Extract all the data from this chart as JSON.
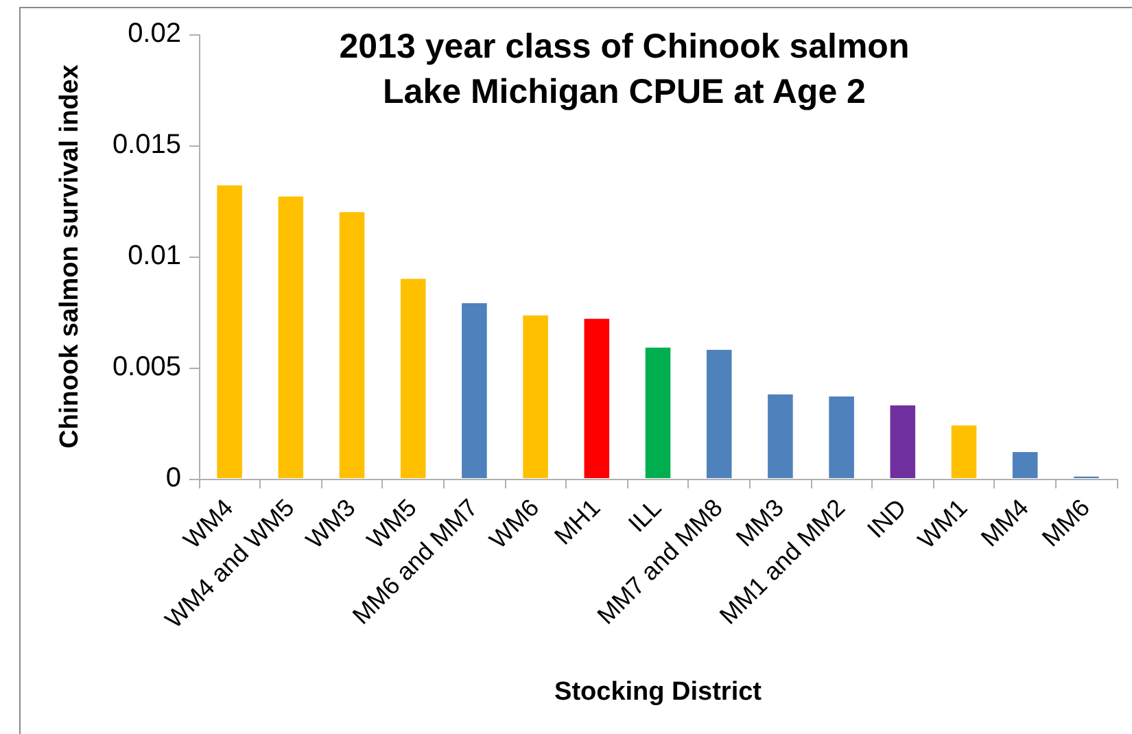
{
  "chart_data": {
    "type": "bar",
    "title": "2013 year class of Chinook salmon\nLake Michigan CPUE at Age 2",
    "xlabel": "Stocking District",
    "ylabel": "Chinook salmon survival index",
    "categories": [
      "WM4",
      "WM4 and WM5",
      "WM3",
      "WM5",
      "MM6 and MM7",
      "WM6",
      "MH1",
      "ILL",
      "MM7 and MM8",
      "MM3",
      "MM1 and MM2",
      "IND",
      "WM1",
      "MM4",
      "MM6"
    ],
    "values": [
      0.0132,
      0.0127,
      0.012,
      0.009,
      0.0079,
      0.00735,
      0.0072,
      0.0059,
      0.0058,
      0.0038,
      0.0037,
      0.0033,
      0.0024,
      0.0012,
      0.0001
    ],
    "colors": [
      "#ffc000",
      "#ffc000",
      "#ffc000",
      "#ffc000",
      "#4f81bd",
      "#ffc000",
      "#ff0000",
      "#00b050",
      "#4f81bd",
      "#4f81bd",
      "#4f81bd",
      "#7030a0",
      "#ffc000",
      "#4f81bd",
      "#4f81bd"
    ],
    "ylim": [
      0,
      0.02
    ],
    "yticks": [
      0,
      0.005,
      0.01,
      0.015,
      0.02
    ],
    "legend": false,
    "grid": false
  }
}
